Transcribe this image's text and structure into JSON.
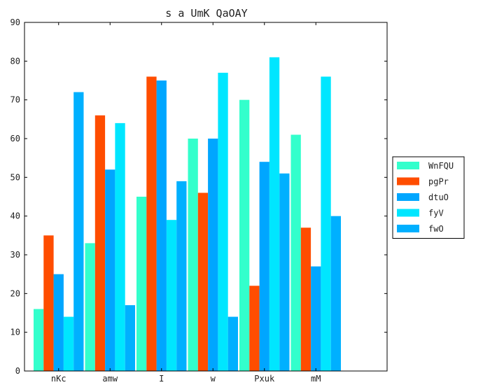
{
  "chart_data": {
    "type": "bar",
    "title": "s a UmK QaOAY",
    "xlabel": "",
    "ylabel": "",
    "ylim": [
      0,
      90
    ],
    "yticks": [
      0,
      10,
      20,
      30,
      40,
      50,
      60,
      70,
      80,
      90
    ],
    "grid": false,
    "legend_position": "right",
    "categories": [
      "nKc",
      "amw",
      "I",
      "w",
      "Pxuk",
      "mM"
    ],
    "series": [
      {
        "name": "WnFQU",
        "color": "#33ffcc",
        "values": [
          16,
          33,
          45,
          60,
          70,
          61
        ]
      },
      {
        "name": "pgPr",
        "color": "#ff4d00",
        "values": [
          35,
          66,
          76,
          46,
          22,
          37
        ]
      },
      {
        "name": "dtuO",
        "color": "#00a6ff",
        "values": [
          25,
          52,
          75,
          60,
          54,
          27
        ]
      },
      {
        "name": "fyV",
        "color": "#00e6ff",
        "values": [
          14,
          64,
          39,
          77,
          81,
          76
        ]
      },
      {
        "name": "fwO",
        "color": "#00b0ff",
        "values": [
          72,
          17,
          49,
          14,
          51,
          40
        ]
      }
    ]
  }
}
